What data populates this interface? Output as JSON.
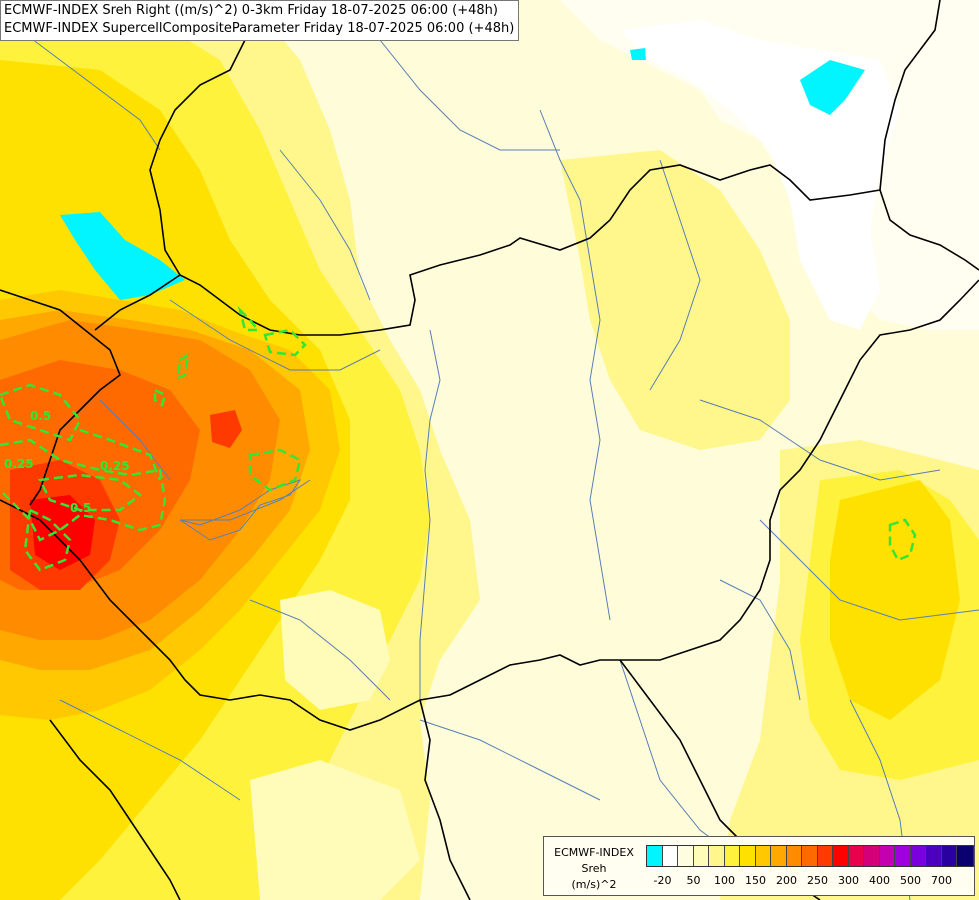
{
  "title": {
    "line1": "ECMWF-INDEX Sreh Right ((m/s)^2) 0-3km Friday 18-07-2025 06:00 (+48h)",
    "line2": "ECMWF-INDEX SupercellCompositeParameter Friday 18-07-2025 06:00 (+48h)"
  },
  "contour_labels": [
    "0.25",
    "0.5",
    "0.25",
    "0.5"
  ],
  "legend": {
    "line1": "ECMWF-INDEX",
    "line2": "Sreh",
    "line3": "(m/s)^2",
    "colors": [
      "#00f5ff",
      "#ffffff",
      "#fffde0",
      "#fffbb8",
      "#fff78c",
      "#fff23c",
      "#ffe100",
      "#ffc800",
      "#ffa800",
      "#ff8c00",
      "#ff6a00",
      "#ff3a00",
      "#ff0000",
      "#e8004c",
      "#d4007a",
      "#c400b0",
      "#a000e0",
      "#7a00dd",
      "#4c00c0",
      "#2a00a0",
      "#0a0070"
    ],
    "ticks": [
      {
        "label": "-20",
        "index": 1
      },
      {
        "label": "50",
        "index": 3
      },
      {
        "label": "100",
        "index": 5
      },
      {
        "label": "150",
        "index": 7
      },
      {
        "label": "200",
        "index": 9
      },
      {
        "label": "250",
        "index": 11
      },
      {
        "label": "300",
        "index": 13
      },
      {
        "label": "400",
        "index": 15
      },
      {
        "label": "500",
        "index": 17
      },
      {
        "label": "700",
        "index": 19
      }
    ]
  },
  "colors": {
    "background": "#fffdd9",
    "border": "#000000",
    "river": "#5a7db5",
    "contour": "#33e633"
  }
}
